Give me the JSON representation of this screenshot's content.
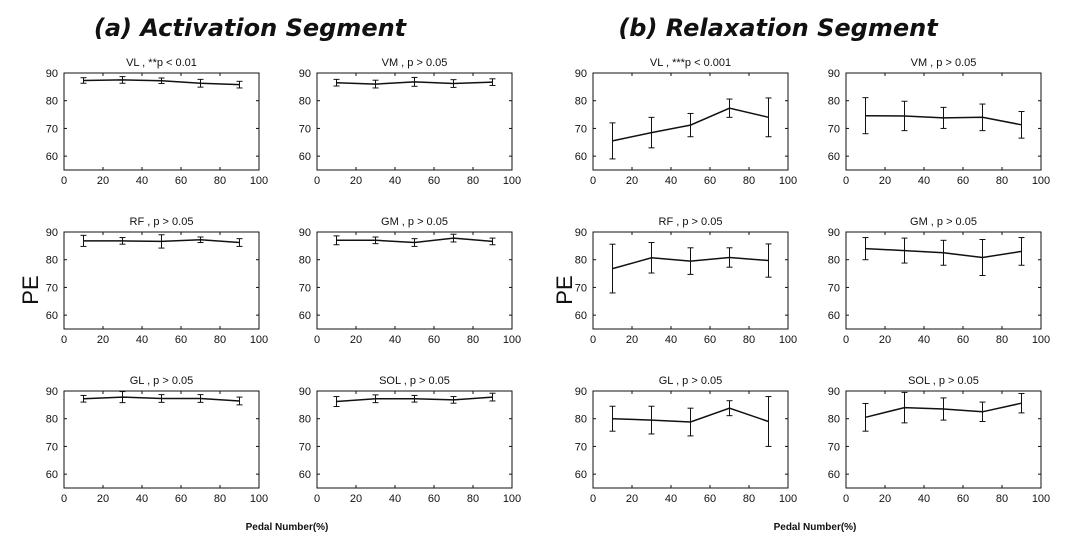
{
  "panels": [
    {
      "title": "(a) Activation Segment",
      "ylabel": "PE",
      "xlabel": "Pedal Number(%)"
    },
    {
      "title": "(b) Relaxation Segment",
      "ylabel": "PE",
      "xlabel": "Pedal Number(%)"
    }
  ],
  "chart_data": [
    {
      "type": "line",
      "panel": "(a) Activation Segment",
      "title": "VL , **p < 0.01",
      "x": [
        10,
        30,
        50,
        70,
        90
      ],
      "y": [
        87.3,
        87.5,
        87.2,
        86.3,
        85.8
      ],
      "err": [
        1.0,
        1.2,
        1.0,
        1.4,
        1.2
      ],
      "xlim": [
        0,
        100
      ],
      "ylim": [
        55,
        90
      ],
      "xticks": [
        0,
        20,
        40,
        60,
        80,
        100
      ],
      "yticks": [
        60,
        70,
        80,
        90
      ]
    },
    {
      "type": "line",
      "panel": "(a) Activation Segment",
      "title": "VM , p > 0.05",
      "x": [
        10,
        30,
        50,
        70,
        90
      ],
      "y": [
        86.5,
        86.0,
        86.8,
        86.2,
        86.7
      ],
      "err": [
        1.2,
        1.4,
        1.6,
        1.4,
        1.2
      ],
      "xlim": [
        0,
        100
      ],
      "ylim": [
        55,
        90
      ],
      "xticks": [
        0,
        20,
        40,
        60,
        80,
        100
      ],
      "yticks": [
        60,
        70,
        80,
        90
      ]
    },
    {
      "type": "line",
      "panel": "(a) Activation Segment",
      "title": "RF , p > 0.05",
      "x": [
        10,
        30,
        50,
        70,
        90
      ],
      "y": [
        86.8,
        86.8,
        86.6,
        87.2,
        86.2
      ],
      "err": [
        2.0,
        1.2,
        2.4,
        1.0,
        1.4
      ],
      "xlim": [
        0,
        100
      ],
      "ylim": [
        55,
        90
      ],
      "xticks": [
        0,
        20,
        40,
        60,
        80,
        100
      ],
      "yticks": [
        60,
        70,
        80,
        90
      ]
    },
    {
      "type": "line",
      "panel": "(a) Activation Segment",
      "title": "GM , p > 0.05",
      "x": [
        10,
        30,
        50,
        70,
        90
      ],
      "y": [
        87.0,
        87.0,
        86.2,
        87.8,
        86.6
      ],
      "err": [
        1.6,
        1.2,
        1.4,
        1.4,
        1.2
      ],
      "xlim": [
        0,
        100
      ],
      "ylim": [
        55,
        90
      ],
      "xticks": [
        0,
        20,
        40,
        60,
        80,
        100
      ],
      "yticks": [
        60,
        70,
        80,
        90
      ]
    },
    {
      "type": "line",
      "panel": "(a) Activation Segment",
      "title": "GL , p > 0.05",
      "x": [
        10,
        30,
        50,
        70,
        90
      ],
      "y": [
        87.2,
        87.8,
        87.3,
        87.3,
        86.4
      ],
      "err": [
        1.2,
        2.0,
        1.4,
        1.4,
        1.4
      ],
      "xlim": [
        0,
        100
      ],
      "ylim": [
        55,
        90
      ],
      "xticks": [
        0,
        20,
        40,
        60,
        80,
        100
      ],
      "yticks": [
        60,
        70,
        80,
        90
      ]
    },
    {
      "type": "line",
      "panel": "(a) Activation Segment",
      "title": "SOL , p > 0.05",
      "x": [
        10,
        30,
        50,
        70,
        90
      ],
      "y": [
        86.2,
        87.2,
        87.2,
        86.8,
        87.8
      ],
      "err": [
        1.8,
        1.4,
        1.2,
        1.2,
        1.4
      ],
      "xlim": [
        0,
        100
      ],
      "ylim": [
        55,
        90
      ],
      "xticks": [
        0,
        20,
        40,
        60,
        80,
        100
      ],
      "yticks": [
        60,
        70,
        80,
        90
      ]
    },
    {
      "type": "line",
      "panel": "(b) Relaxation Segment",
      "title": "VL , ***p < 0.001",
      "x": [
        10,
        30,
        50,
        70,
        90
      ],
      "y": [
        65.5,
        68.5,
        71.2,
        77.3,
        74.0
      ],
      "err": [
        6.5,
        5.5,
        4.2,
        3.3,
        7.0
      ],
      "xlim": [
        0,
        100
      ],
      "ylim": [
        55,
        90
      ],
      "xticks": [
        0,
        20,
        40,
        60,
        80,
        100
      ],
      "yticks": [
        60,
        70,
        80,
        90
      ]
    },
    {
      "type": "line",
      "panel": "(b) Relaxation Segment",
      "title": "VM , p > 0.05",
      "x": [
        10,
        30,
        50,
        70,
        90
      ],
      "y": [
        74.6,
        74.5,
        73.8,
        74.0,
        71.3
      ],
      "err": [
        6.5,
        5.3,
        3.8,
        4.8,
        4.8
      ],
      "xlim": [
        0,
        100
      ],
      "ylim": [
        55,
        90
      ],
      "xticks": [
        0,
        20,
        40,
        60,
        80,
        100
      ],
      "yticks": [
        60,
        70,
        80,
        90
      ]
    },
    {
      "type": "line",
      "panel": "(b) Relaxation Segment",
      "title": "RF , p > 0.05",
      "x": [
        10,
        30,
        50,
        70,
        90
      ],
      "y": [
        76.8,
        80.7,
        79.5,
        80.8,
        79.7
      ],
      "err": [
        8.8,
        5.5,
        4.8,
        3.5,
        6.0
      ],
      "xlim": [
        0,
        100
      ],
      "ylim": [
        55,
        90
      ],
      "xticks": [
        0,
        20,
        40,
        60,
        80,
        100
      ],
      "yticks": [
        60,
        70,
        80,
        90
      ]
    },
    {
      "type": "line",
      "panel": "(b) Relaxation Segment",
      "title": "GM , p > 0.05",
      "x": [
        10,
        30,
        50,
        70,
        90
      ],
      "y": [
        84.0,
        83.3,
        82.5,
        80.8,
        83.0
      ],
      "err": [
        4.0,
        4.5,
        4.5,
        6.5,
        5.0
      ],
      "xlim": [
        0,
        100
      ],
      "ylim": [
        55,
        90
      ],
      "xticks": [
        0,
        20,
        40,
        60,
        80,
        100
      ],
      "yticks": [
        60,
        70,
        80,
        90
      ]
    },
    {
      "type": "line",
      "panel": "(b) Relaxation Segment",
      "title": "GL , p > 0.05",
      "x": [
        10,
        30,
        50,
        70,
        90
      ],
      "y": [
        80.0,
        79.5,
        78.8,
        83.8,
        79.0
      ],
      "err": [
        4.5,
        5.0,
        5.0,
        2.7,
        9.0
      ],
      "xlim": [
        0,
        100
      ],
      "ylim": [
        55,
        90
      ],
      "xticks": [
        0,
        20,
        40,
        60,
        80,
        100
      ],
      "yticks": [
        60,
        70,
        80,
        90
      ]
    },
    {
      "type": "line",
      "panel": "(b) Relaxation Segment",
      "title": "SOL , p > 0.05",
      "x": [
        10,
        30,
        50,
        70,
        90
      ],
      "y": [
        80.5,
        84.0,
        83.5,
        82.5,
        85.6
      ],
      "err": [
        5.0,
        5.5,
        4.0,
        3.5,
        3.5
      ],
      "xlim": [
        0,
        100
      ],
      "ylim": [
        55,
        90
      ],
      "xticks": [
        0,
        20,
        40,
        60,
        80,
        100
      ],
      "yticks": [
        60,
        70,
        80,
        90
      ]
    }
  ]
}
